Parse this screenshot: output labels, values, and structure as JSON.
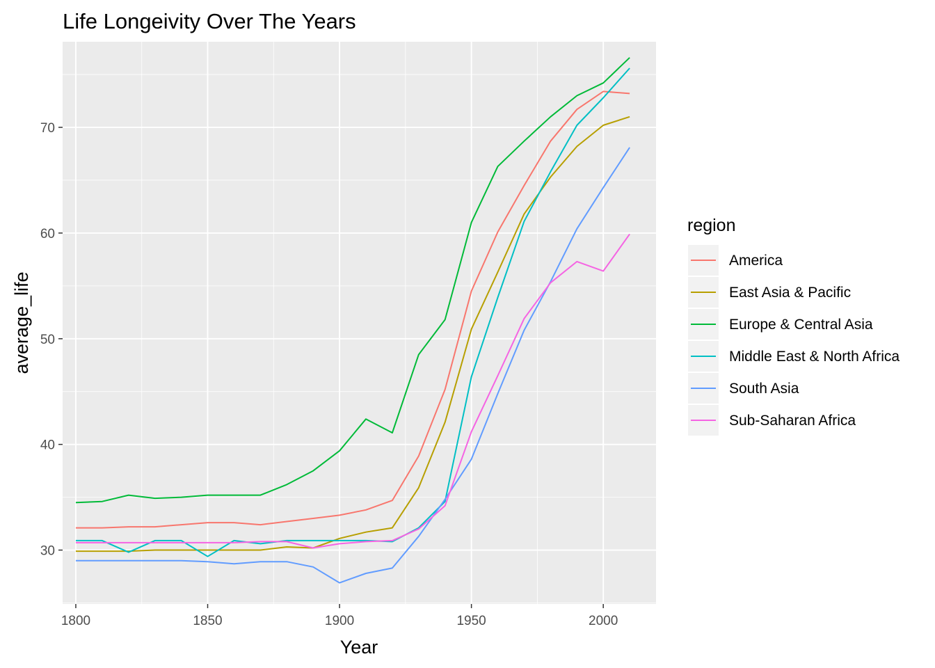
{
  "chart_data": {
    "type": "line",
    "title": "Life Longeivity Over The Years",
    "xlabel": "Year",
    "ylabel": "average_life",
    "xlim": [
      1795,
      2020
    ],
    "ylim": [
      24.9,
      78.1
    ],
    "x_ticks": [
      1800,
      1850,
      1900,
      1950,
      2000
    ],
    "y_ticks": [
      30,
      40,
      50,
      60,
      70
    ],
    "grid": true,
    "legend": {
      "title": "region",
      "position": "right"
    },
    "x": [
      1800,
      1810,
      1820,
      1830,
      1840,
      1850,
      1860,
      1870,
      1880,
      1890,
      1900,
      1910,
      1920,
      1930,
      1940,
      1950,
      1960,
      1970,
      1980,
      1990,
      2000,
      2010
    ],
    "series": [
      {
        "name": "America",
        "color": "#F8766D",
        "values": [
          32.1,
          32.1,
          32.2,
          32.2,
          32.4,
          32.6,
          32.6,
          32.4,
          32.7,
          33.0,
          33.3,
          33.8,
          34.7,
          38.9,
          45.2,
          54.5,
          60.1,
          64.5,
          68.7,
          71.7,
          73.4,
          73.2
        ]
      },
      {
        "name": "East Asia & Pacific",
        "color": "#B79F00",
        "values": [
          29.9,
          29.9,
          29.9,
          30.0,
          30.0,
          30.0,
          30.0,
          30.0,
          30.3,
          30.2,
          31.1,
          31.7,
          32.1,
          35.9,
          42.1,
          50.9,
          56.3,
          61.8,
          65.3,
          68.2,
          70.2,
          71.0
        ]
      },
      {
        "name": "Europe & Central Asia",
        "color": "#00BA38",
        "values": [
          34.5,
          34.6,
          35.2,
          34.9,
          35.0,
          35.2,
          35.2,
          35.2,
          36.2,
          37.5,
          39.4,
          42.4,
          41.1,
          48.5,
          51.8,
          61.0,
          66.3,
          68.7,
          71.0,
          73.0,
          74.2,
          76.6
        ]
      },
      {
        "name": "Middle East & North Africa",
        "color": "#00BFC4",
        "values": [
          30.9,
          30.9,
          29.8,
          30.9,
          30.9,
          29.4,
          30.9,
          30.6,
          30.9,
          30.9,
          30.9,
          30.9,
          30.8,
          32.1,
          34.6,
          46.4,
          53.9,
          61.1,
          65.8,
          70.2,
          72.8,
          75.6
        ]
      },
      {
        "name": "South Asia",
        "color": "#619CFF",
        "values": [
          29.0,
          29.0,
          29.0,
          29.0,
          29.0,
          28.9,
          28.7,
          28.9,
          28.9,
          28.4,
          26.9,
          27.8,
          28.3,
          31.3,
          34.8,
          38.6,
          44.8,
          50.8,
          55.4,
          60.4,
          64.3,
          68.1
        ]
      },
      {
        "name": "Sub-Saharan Africa",
        "color": "#F564E3",
        "values": [
          30.7,
          30.7,
          30.7,
          30.7,
          30.7,
          30.7,
          30.7,
          30.8,
          30.8,
          30.2,
          30.6,
          30.8,
          30.9,
          32.0,
          34.2,
          41.2,
          46.5,
          51.9,
          55.3,
          57.3,
          56.4,
          59.9
        ]
      }
    ]
  }
}
